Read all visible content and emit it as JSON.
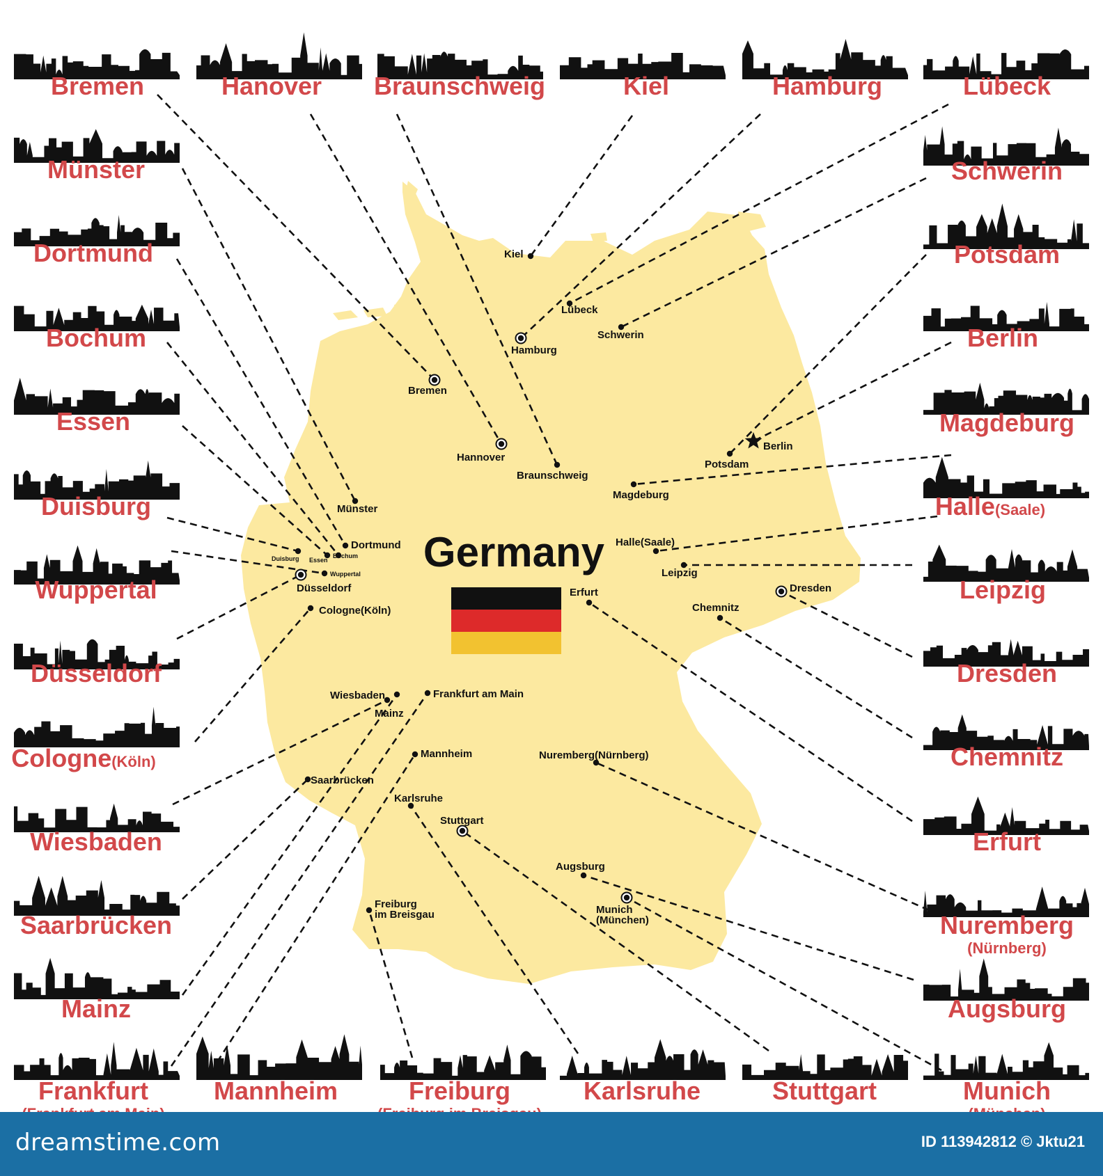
{
  "title": "Germany",
  "colors": {
    "map": "#fce9a0",
    "label": "#d2484a",
    "ink": "#111111",
    "footer": "#1b6fa4",
    "flag": [
      "#111111",
      "#dd2a2a",
      "#f2c230"
    ]
  },
  "cities": [
    {
      "id": "bremen",
      "name": "Bremen"
    },
    {
      "id": "hanover",
      "name": "Hanover"
    },
    {
      "id": "braunschweig",
      "name": "Braunschweig"
    },
    {
      "id": "kiel",
      "name": "Kiel"
    },
    {
      "id": "hamburg",
      "name": "Hamburg"
    },
    {
      "id": "luebeck",
      "name": "Lübeck"
    },
    {
      "id": "muenster",
      "name": "Münster"
    },
    {
      "id": "dortmund",
      "name": "Dortmund"
    },
    {
      "id": "bochum",
      "name": "Bochum"
    },
    {
      "id": "essen",
      "name": "Essen"
    },
    {
      "id": "duisburg",
      "name": "Duisburg"
    },
    {
      "id": "wuppertal",
      "name": "Wuppertal"
    },
    {
      "id": "duesseldorf",
      "name": "Düsseldorf"
    },
    {
      "id": "cologne",
      "name": "Cologne",
      "suffix": "(Köln)"
    },
    {
      "id": "wiesbaden",
      "name": "Wiesbaden"
    },
    {
      "id": "saarbruecken",
      "name": "Saarbrücken"
    },
    {
      "id": "mainz",
      "name": "Mainz"
    },
    {
      "id": "frankfurt",
      "name": "Frankfurt",
      "sub": "(Frankfurt am Main)"
    },
    {
      "id": "mannheim",
      "name": "Mannheim"
    },
    {
      "id": "freiburg",
      "name": "Freiburg",
      "sub": "(Freiburg im Breisgau)"
    },
    {
      "id": "karlsruhe",
      "name": "Karlsruhe"
    },
    {
      "id": "stuttgart",
      "name": "Stuttgart"
    },
    {
      "id": "munich",
      "name": "Munich",
      "sub": "(München)"
    },
    {
      "id": "schwerin",
      "name": "Schwerin"
    },
    {
      "id": "potsdam",
      "name": "Potsdam"
    },
    {
      "id": "berlin",
      "name": "Berlin"
    },
    {
      "id": "magdeburg",
      "name": "Magdeburg"
    },
    {
      "id": "halle",
      "name": "Halle",
      "suffix": "(Saale)"
    },
    {
      "id": "leipzig",
      "name": "Leipzig"
    },
    {
      "id": "dresden",
      "name": "Dresden"
    },
    {
      "id": "chemnitz",
      "name": "Chemnitz"
    },
    {
      "id": "erfurt",
      "name": "Erfurt"
    },
    {
      "id": "nuremberg",
      "name": "Nuremberg",
      "sub": "(Nürnberg)"
    },
    {
      "id": "augsburg",
      "name": "Augsburg"
    }
  ],
  "map_labels": [
    {
      "id": "kiel",
      "text": "Kiel"
    },
    {
      "id": "luebeck",
      "text": "Lübeck"
    },
    {
      "id": "hamburg",
      "text": "Hamburg"
    },
    {
      "id": "schwerin",
      "text": "Schwerin"
    },
    {
      "id": "bremen",
      "text": "Bremen"
    },
    {
      "id": "hanover",
      "text": "Hannover"
    },
    {
      "id": "braunschweig",
      "text": "Braunschweig"
    },
    {
      "id": "berlin",
      "text": "Berlin"
    },
    {
      "id": "potsdam",
      "text": "Potsdam"
    },
    {
      "id": "magdeburg",
      "text": "Magdeburg"
    },
    {
      "id": "muenster",
      "text": "Münster"
    },
    {
      "id": "dortmund",
      "text": "Dortmund"
    },
    {
      "id": "duisburg",
      "text": "Duisburg"
    },
    {
      "id": "essen",
      "text": "Essen"
    },
    {
      "id": "bochum",
      "text": "Bochum"
    },
    {
      "id": "wuppertal",
      "text": "Wuppertal"
    },
    {
      "id": "duesseldorf",
      "text": "Düsseldorf"
    },
    {
      "id": "cologne",
      "text": "Cologne(Köln)"
    },
    {
      "id": "halle",
      "text": "Halle(Saale)"
    },
    {
      "id": "leipzig",
      "text": "Leipzig"
    },
    {
      "id": "erfurt",
      "text": "Erfurt"
    },
    {
      "id": "dresden",
      "text": "Dresden"
    },
    {
      "id": "chemnitz",
      "text": "Chemnitz"
    },
    {
      "id": "wiesbaden",
      "text": "Wiesbaden"
    },
    {
      "id": "mainz",
      "text": "Mainz"
    },
    {
      "id": "frankfurt",
      "text": "Frankfurt am Main"
    },
    {
      "id": "mannheim",
      "text": "Mannheim"
    },
    {
      "id": "nuremberg",
      "text": "Nuremberg(Nürnberg)"
    },
    {
      "id": "saarbruecken",
      "text": "Saarbrücken"
    },
    {
      "id": "karlsruhe",
      "text": "Karlsruhe"
    },
    {
      "id": "stuttgart",
      "text": "Stuttgart"
    },
    {
      "id": "augsburg",
      "text": "Augsburg"
    },
    {
      "id": "munich",
      "text": "Munich\n(München)"
    },
    {
      "id": "freiburg",
      "text": "Freiburg\nim Breisgau"
    }
  ],
  "footer": {
    "brand": "dreamstime.com",
    "image_id": "ID 113942812 © Jktu21"
  }
}
